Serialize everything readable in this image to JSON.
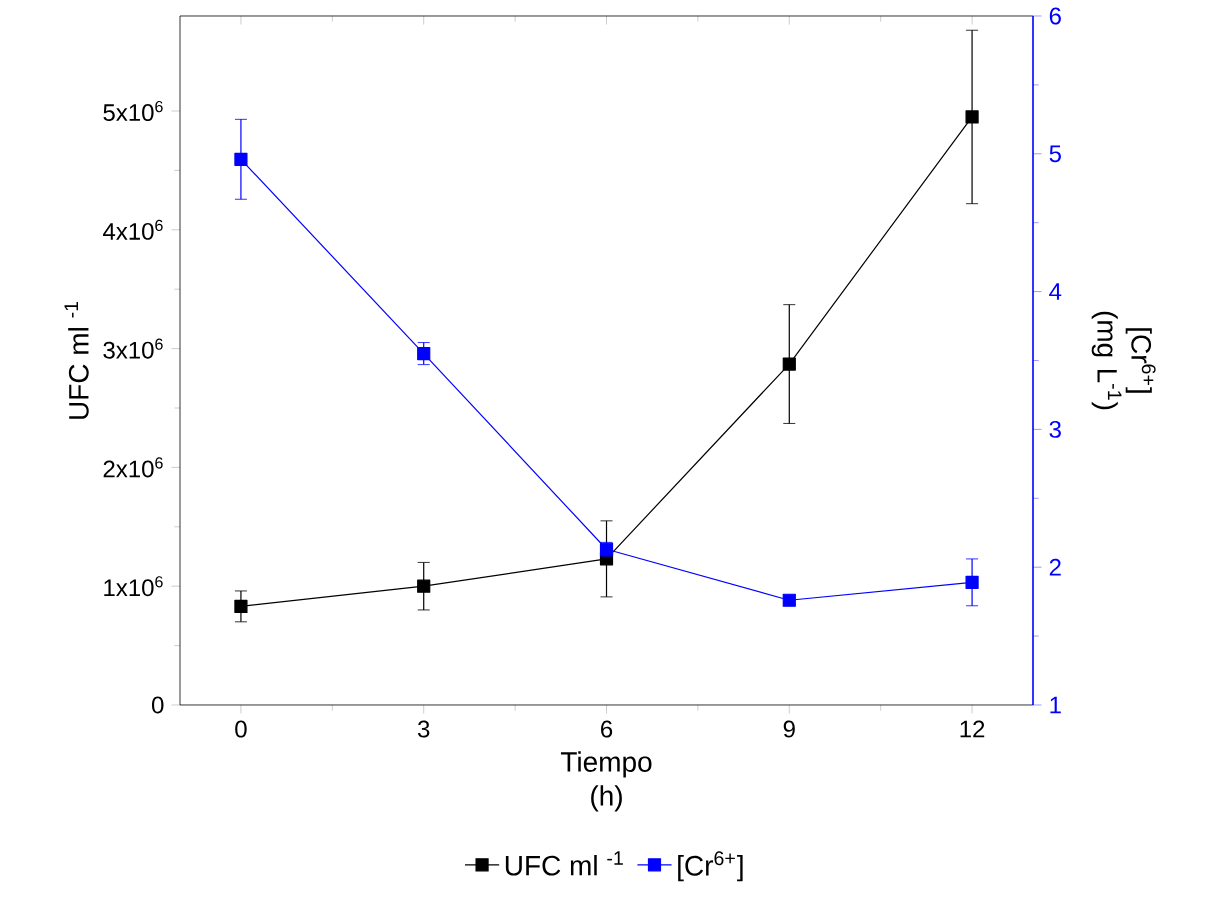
{
  "chart_data": {
    "type": "line",
    "xlabel": "Tiempo (h)",
    "ylabel": "UFC ml $^{-1}$",
    "y2label": "[Cr$^{6+}$] (mg L$^{-1}$)",
    "x": [
      0,
      3,
      6,
      9,
      12
    ],
    "series": [
      {
        "name": "UFC ml $^{-1}$",
        "color": "#000000",
        "values": [
          830000,
          1000000,
          1230000,
          2870000,
          4950000
        ],
        "errors": [
          130000,
          200000,
          320000,
          500000,
          730000
        ]
      },
      {
        "name": "[Cr$^{6+}$]",
        "color": "#0000ff",
        "axis": "y2",
        "values": [
          4.96,
          3.55,
          2.13,
          1.76,
          1.89
        ],
        "errors": [
          0.29,
          0.08,
          0.05,
          0.02,
          0.17
        ]
      }
    ],
    "xlim": [
      -1,
      13
    ],
    "xticks": [
      0,
      3,
      6,
      9,
      12
    ],
    "ylim": [
      0,
      5800000
    ],
    "yticks": [
      0,
      {
        "value": 1000000,
        "label": "1x10$^{6}$"
      },
      {
        "value": 2000000,
        "label": "2x10$^{6}$"
      },
      {
        "value": 3000000,
        "label": "3x10$^{6}$"
      },
      {
        "value": 4000000,
        "label": "4x10$^{6}$"
      },
      {
        "value": 5000000,
        "label": "5x10$^{6}$"
      }
    ],
    "y2lim": [
      1,
      6
    ],
    "y2ticks": [
      1,
      2,
      3,
      4,
      5,
      6
    ],
    "legend": "bottom",
    "marker": "square"
  }
}
